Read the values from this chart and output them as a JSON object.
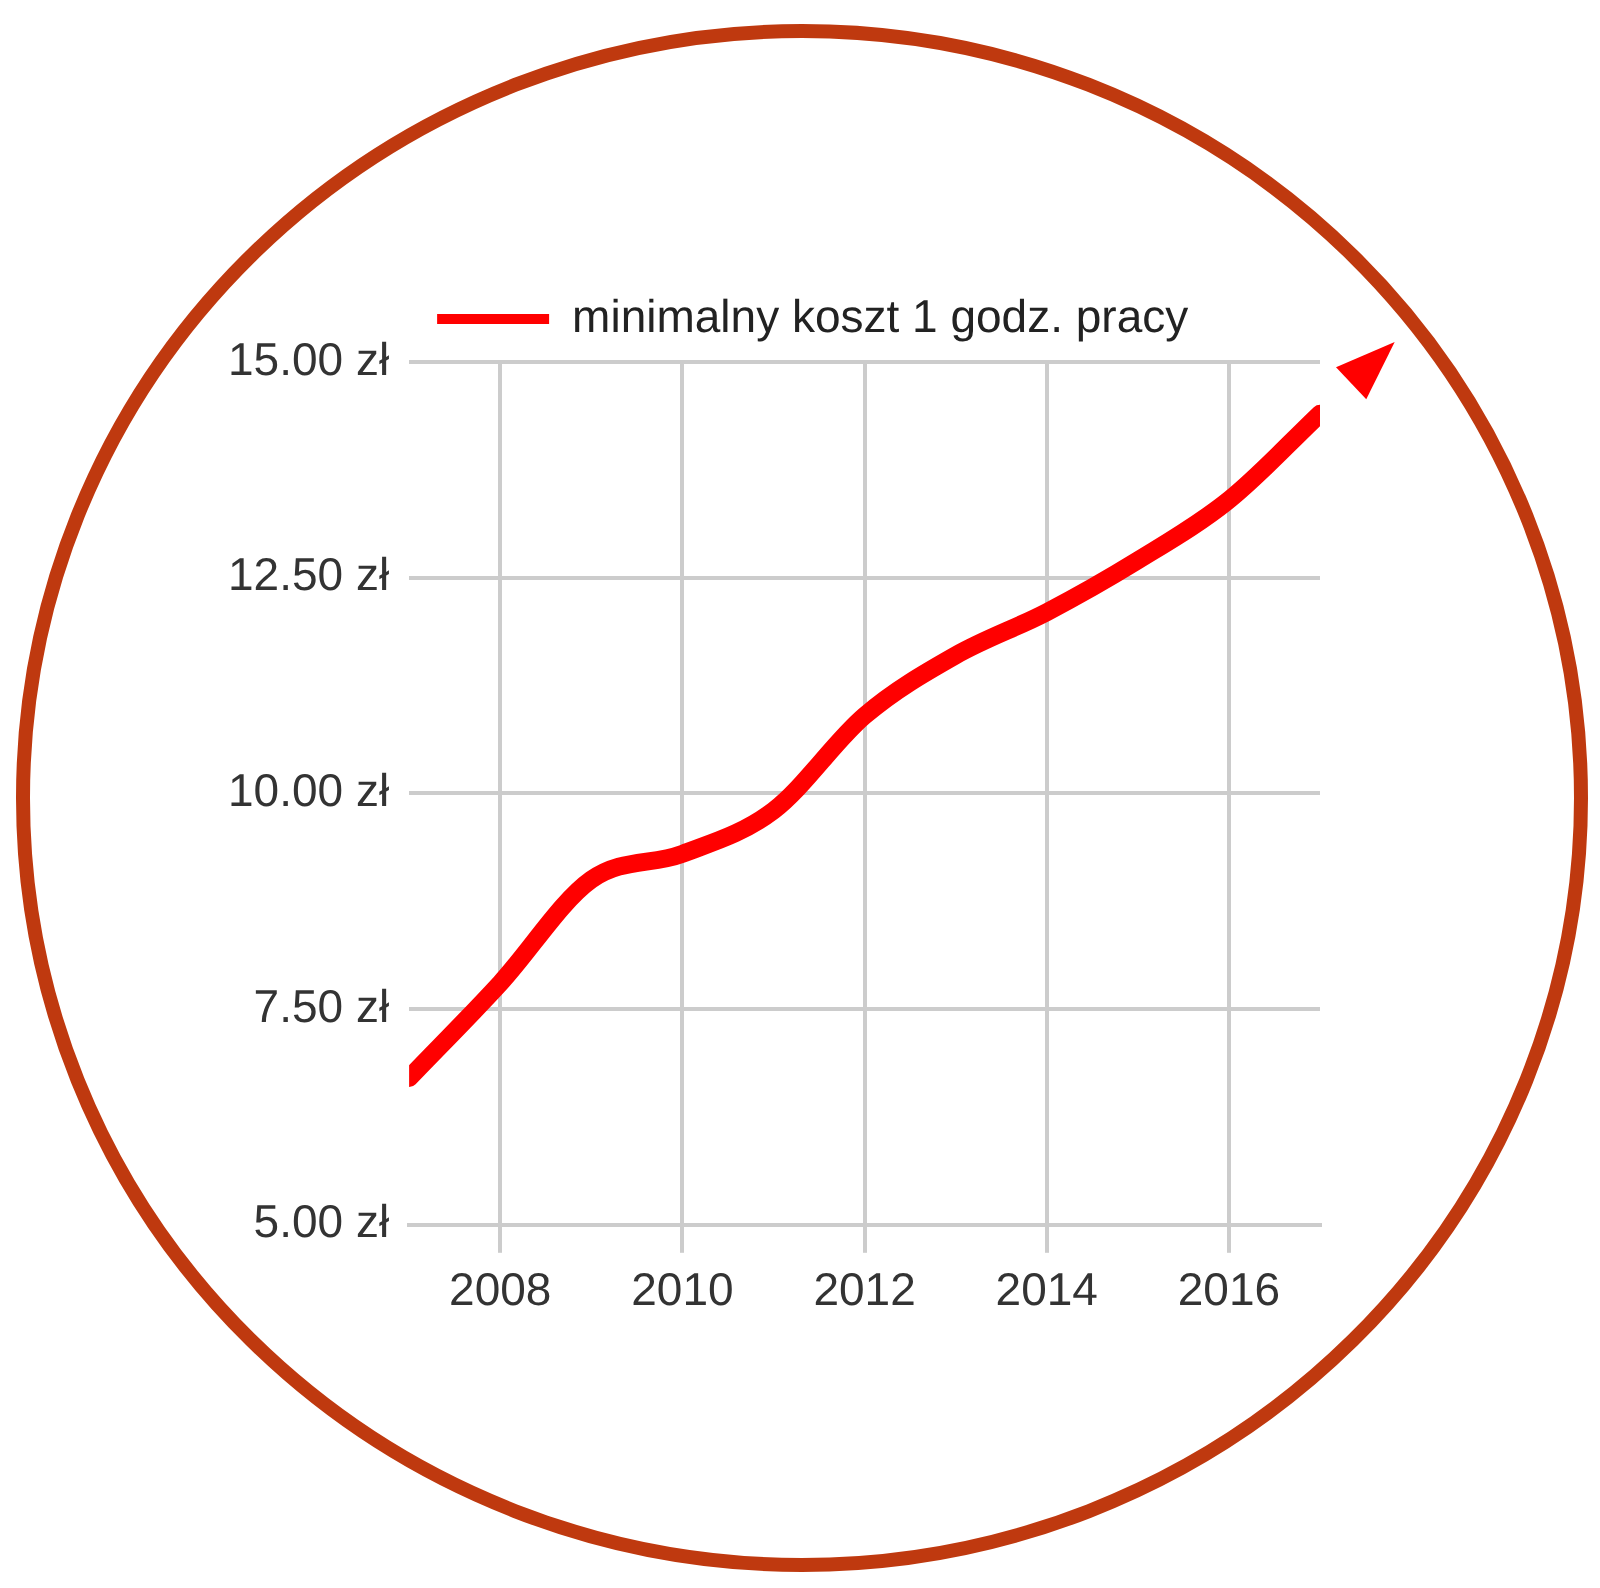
{
  "chart_data": {
    "type": "line",
    "x": [
      2007,
      2008,
      2009,
      2010,
      2011,
      2012,
      2013,
      2014,
      2015,
      2016,
      2017
    ],
    "series": [
      {
        "name": "minimalny koszt 1 godz. pracy",
        "color": "#ff0000",
        "values": [
          6.7,
          7.8,
          9.0,
          9.3,
          9.8,
          10.9,
          11.6,
          12.1,
          12.7,
          13.4,
          14.4
        ]
      }
    ],
    "xlim": [
      2007,
      2017
    ],
    "xticks": [
      2008,
      2010,
      2012,
      2014,
      2016
    ],
    "ylim": [
      5,
      15
    ],
    "yticks": [
      {
        "value": 5,
        "label": "5.00 zł"
      },
      {
        "value": 7.5,
        "label": "7.50 zł"
      },
      {
        "value": 10,
        "label": "10.00 zł"
      },
      {
        "value": 12.5,
        "label": "12.50 zł"
      },
      {
        "value": 15,
        "label": "15.00 zł"
      }
    ],
    "grid": true,
    "legend": "top left",
    "marker": "none",
    "line_style": "solid"
  }
}
